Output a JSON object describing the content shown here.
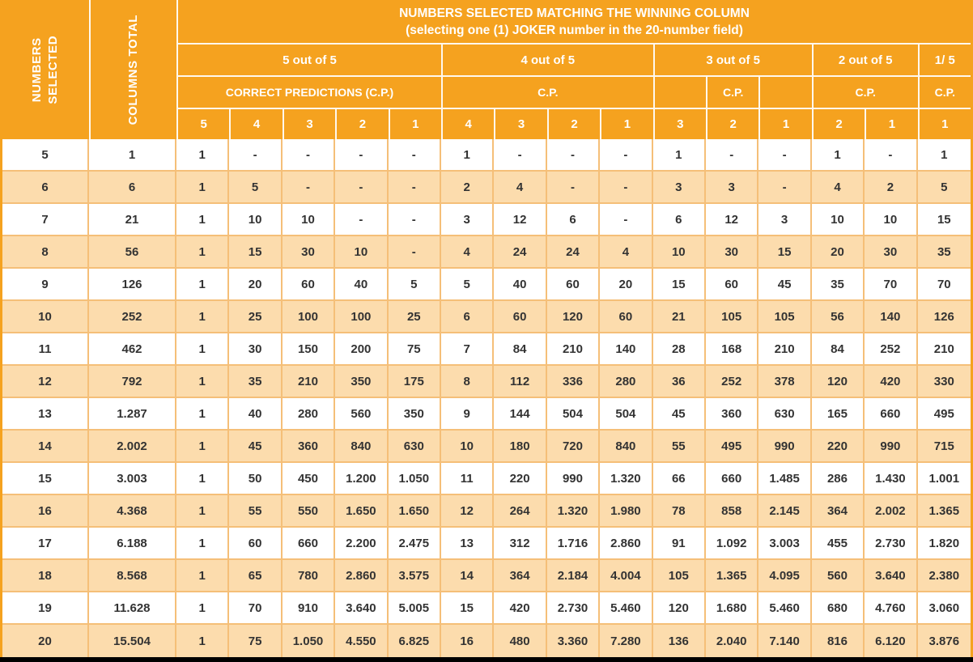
{
  "colors": {
    "orange": "#F5A21F",
    "row_alt": "#FCDCAD",
    "grid": "#F5BF78",
    "text": "#333333",
    "bottom_bar": "#000000"
  },
  "header": {
    "numbers_selected": {
      "line1": "NUMBERS",
      "line2": "SELECTED"
    },
    "columns_total": "COLUMNS TOTAL",
    "title_line1": "NUMBERS SELECTED MATCHING THE WINNING COLUMN",
    "title_line2": "(selecting one (1) JOKER number in the 20-number field)",
    "group_labels": [
      "5 out of 5",
      "4 out of 5",
      "3 out of 5",
      "2 out of 5",
      "1/ 5"
    ],
    "cp_cells": [
      {
        "label": "CORRECT PREDICTIONS (C.P.)",
        "span": 5
      },
      {
        "label": "",
        "span": 4,
        "note": "label set below"
      },
      {
        "label": "",
        "span": 1
      },
      {
        "label": "C.P.",
        "span": 1
      },
      {
        "label": "",
        "span": 1
      },
      {
        "label": "C.P.",
        "span": 2
      },
      {
        "label": "C.P.",
        "span": 1
      }
    ],
    "cp_label_4of5": "C.P.",
    "col_numbers": [
      "5",
      "4",
      "3",
      "2",
      "1",
      "4",
      "3",
      "2",
      "1",
      "3",
      "2",
      "1",
      "2",
      "1",
      "1"
    ]
  },
  "rows": [
    {
      "selected": "5",
      "total": "1",
      "values": [
        "1",
        "-",
        "-",
        "-",
        "-",
        "1",
        "-",
        "-",
        "-",
        "1",
        "-",
        "-",
        "1",
        "-",
        "1"
      ]
    },
    {
      "selected": "6",
      "total": "6",
      "values": [
        "1",
        "5",
        "-",
        "-",
        "-",
        "2",
        "4",
        "-",
        "-",
        "3",
        "3",
        "-",
        "4",
        "2",
        "5"
      ]
    },
    {
      "selected": "7",
      "total": "21",
      "values": [
        "1",
        "10",
        "10",
        "-",
        "-",
        "3",
        "12",
        "6",
        "-",
        "6",
        "12",
        "3",
        "10",
        "10",
        "15"
      ]
    },
    {
      "selected": "8",
      "total": "56",
      "values": [
        "1",
        "15",
        "30",
        "10",
        "-",
        "4",
        "24",
        "24",
        "4",
        "10",
        "30",
        "15",
        "20",
        "30",
        "35"
      ]
    },
    {
      "selected": "9",
      "total": "126",
      "values": [
        "1",
        "20",
        "60",
        "40",
        "5",
        "5",
        "40",
        "60",
        "20",
        "15",
        "60",
        "45",
        "35",
        "70",
        "70"
      ]
    },
    {
      "selected": "10",
      "total": "252",
      "values": [
        "1",
        "25",
        "100",
        "100",
        "25",
        "6",
        "60",
        "120",
        "60",
        "21",
        "105",
        "105",
        "56",
        "140",
        "126"
      ]
    },
    {
      "selected": "11",
      "total": "462",
      "values": [
        "1",
        "30",
        "150",
        "200",
        "75",
        "7",
        "84",
        "210",
        "140",
        "28",
        "168",
        "210",
        "84",
        "252",
        "210"
      ]
    },
    {
      "selected": "12",
      "total": "792",
      "values": [
        "1",
        "35",
        "210",
        "350",
        "175",
        "8",
        "112",
        "336",
        "280",
        "36",
        "252",
        "378",
        "120",
        "420",
        "330"
      ]
    },
    {
      "selected": "13",
      "total": "1.287",
      "values": [
        "1",
        "40",
        "280",
        "560",
        "350",
        "9",
        "144",
        "504",
        "504",
        "45",
        "360",
        "630",
        "165",
        "660",
        "495"
      ]
    },
    {
      "selected": "14",
      "total": "2.002",
      "values": [
        "1",
        "45",
        "360",
        "840",
        "630",
        "10",
        "180",
        "720",
        "840",
        "55",
        "495",
        "990",
        "220",
        "990",
        "715"
      ]
    },
    {
      "selected": "15",
      "total": "3.003",
      "values": [
        "1",
        "50",
        "450",
        "1.200",
        "1.050",
        "11",
        "220",
        "990",
        "1.320",
        "66",
        "660",
        "1.485",
        "286",
        "1.430",
        "1.001"
      ]
    },
    {
      "selected": "16",
      "total": "4.368",
      "values": [
        "1",
        "55",
        "550",
        "1.650",
        "1.650",
        "12",
        "264",
        "1.320",
        "1.980",
        "78",
        "858",
        "2.145",
        "364",
        "2.002",
        "1.365"
      ]
    },
    {
      "selected": "17",
      "total": "6.188",
      "values": [
        "1",
        "60",
        "660",
        "2.200",
        "2.475",
        "13",
        "312",
        "1.716",
        "2.860",
        "91",
        "1.092",
        "3.003",
        "455",
        "2.730",
        "1.820"
      ]
    },
    {
      "selected": "18",
      "total": "8.568",
      "values": [
        "1",
        "65",
        "780",
        "2.860",
        "3.575",
        "14",
        "364",
        "2.184",
        "4.004",
        "105",
        "1.365",
        "4.095",
        "560",
        "3.640",
        "2.380"
      ]
    },
    {
      "selected": "19",
      "total": "11.628",
      "values": [
        "1",
        "70",
        "910",
        "3.640",
        "5.005",
        "15",
        "420",
        "2.730",
        "5.460",
        "120",
        "1.680",
        "5.460",
        "680",
        "4.760",
        "3.060"
      ]
    },
    {
      "selected": "20",
      "total": "15.504",
      "values": [
        "1",
        "75",
        "1.050",
        "4.550",
        "6.825",
        "16",
        "480",
        "3.360",
        "7.280",
        "136",
        "2.040",
        "7.140",
        "816",
        "6.120",
        "3.876"
      ]
    }
  ]
}
